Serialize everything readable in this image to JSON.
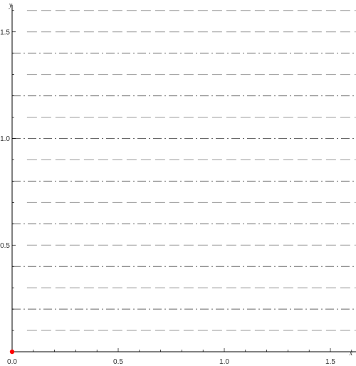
{
  "chart_data": {
    "type": "line",
    "xlabel": "x",
    "ylabel": "y",
    "xlim": [
      0,
      1.62
    ],
    "ylim": [
      0,
      1.62
    ],
    "x_ticks": [
      {
        "value": 0.0,
        "label": "0.0"
      },
      {
        "value": 0.5,
        "label": "0.5"
      },
      {
        "value": 1.0,
        "label": "1.0"
      },
      {
        "value": 1.5,
        "label": "1.5"
      }
    ],
    "y_ticks": [
      {
        "value": 0.5,
        "label": "0.5"
      },
      {
        "value": 1.0,
        "label": "1.0"
      },
      {
        "value": 1.5,
        "label": "1.5"
      }
    ],
    "minor_tick_step": 0.1,
    "grid": false,
    "series": [
      {
        "style": "dashed",
        "color": "#9a9a9a",
        "x_range": [
          0.07,
          1.62
        ],
        "y_values": [
          0.1,
          0.3,
          0.5,
          0.7,
          0.9,
          1.1,
          1.3,
          1.5,
          1.6
        ]
      },
      {
        "style": "dash-dot",
        "color": "#6a6a6a",
        "x_range": [
          0.0,
          1.62
        ],
        "y_values": [
          0.2,
          0.4,
          0.6,
          0.8,
          1.0,
          1.2,
          1.4
        ]
      }
    ],
    "points": [
      {
        "x": 0.0,
        "y": 0.0,
        "color": "#ff0000"
      }
    ]
  }
}
